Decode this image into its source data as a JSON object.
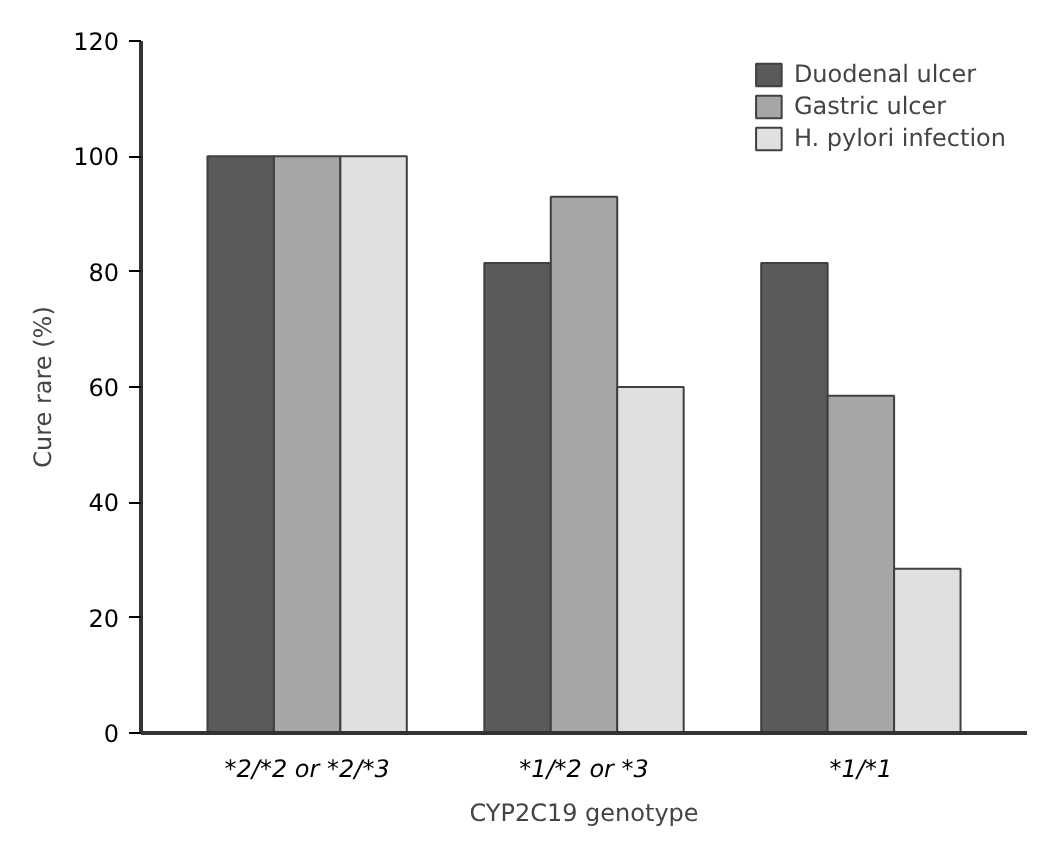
{
  "chart_data": {
    "type": "bar",
    "xlabel": "CYP2C19 genotype",
    "ylabel": "Cure rare (%)",
    "categories": [
      "*2/*2 or *2/*3",
      "*1/*2 or *3",
      "*1/*1"
    ],
    "series": [
      {
        "name": "Duodenal ulcer",
        "color": "#5a5a5a",
        "values": [
          100,
          81.5,
          81.5
        ]
      },
      {
        "name": "Gastric ulcer",
        "color": "#a6a6a6",
        "values": [
          100,
          93,
          58.5
        ]
      },
      {
        "name": "H. pylori infection",
        "color": "#e0e0e0",
        "values": [
          100,
          60,
          28.5
        ]
      }
    ],
    "ylim": [
      0,
      120
    ],
    "yticks": [
      0,
      20,
      40,
      60,
      80,
      100,
      120
    ],
    "grid": false,
    "legend": "top right"
  }
}
